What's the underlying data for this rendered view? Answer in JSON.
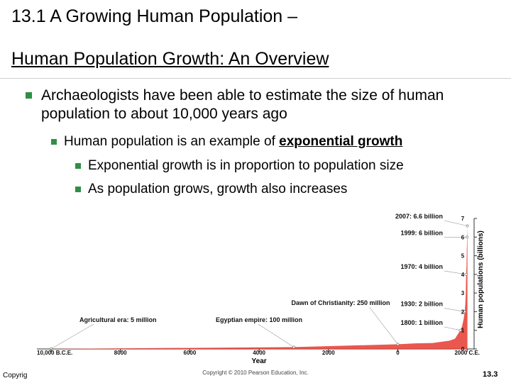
{
  "slide": {
    "title": "13.1 A Growing Human Population –",
    "subtitle": "Human Population Growth:  An Overview",
    "bullets": [
      "Archaeologists have been able to estimate the size of human population to about 10,000 years ago",
      "Human population is an example of",
      "Exponential growth is in proportion to population size",
      "As population grows, growth also increases"
    ],
    "emphasis_term": "exponential growth",
    "footer_left": "Copyrig",
    "footer_right": "13.3"
  },
  "chart_data": {
    "type": "area",
    "title": "",
    "xlabel": "Year",
    "ylabel": "Human populations (billions)",
    "x_tick_labels": [
      "10,000 B.C.E.",
      "8000",
      "6000",
      "4000",
      "2000",
      "0",
      "2000 C.E."
    ],
    "x_ticks_years": [
      -10000,
      -8000,
      -6000,
      -4000,
      -2000,
      0,
      2000
    ],
    "xlim": [
      -10000,
      2200
    ],
    "ylim": [
      0,
      7
    ],
    "y_ticks": [
      0,
      1,
      2,
      3,
      4,
      5,
      6,
      7
    ],
    "series": [
      {
        "x": [
          -10000,
          -3000,
          -1000,
          0,
          500,
          1000,
          1500,
          1650,
          1800,
          1850,
          1900,
          1930,
          1950,
          1960,
          1970,
          1980,
          1990,
          1999,
          2007
        ],
        "y": [
          0.005,
          0.1,
          0.2,
          0.25,
          0.3,
          0.32,
          0.45,
          0.55,
          1,
          1.2,
          1.6,
          2,
          2.5,
          3,
          4,
          4.4,
          5.3,
          6,
          6.6
        ]
      }
    ],
    "annotations": [
      {
        "label": "Agricultural era: 5 million",
        "year": -10000,
        "value": 0.005
      },
      {
        "label": "Egyptian empire: 100 million",
        "year": -3000,
        "value": 0.1
      },
      {
        "label": "Dawn of Christianity: 250 million",
        "year": 0,
        "value": 0.25
      },
      {
        "label": "1800: 1 billion",
        "year": 1800,
        "value": 1
      },
      {
        "label": "1930: 2 billion",
        "year": 1930,
        "value": 2
      },
      {
        "label": "1970: 4 billion",
        "year": 1970,
        "value": 4
      },
      {
        "label": "1999: 6 billion",
        "year": 1999,
        "value": 6
      },
      {
        "label": "2007: 6.6 billion",
        "year": 2007,
        "value": 6.6
      }
    ],
    "copyright": "Copyright © 2010 Pearson Education, Inc.",
    "colors": {
      "fill": "#e8453c",
      "fill_light": "#f08a78",
      "axis": "#333333",
      "bullet": "#2f8f46"
    }
  }
}
